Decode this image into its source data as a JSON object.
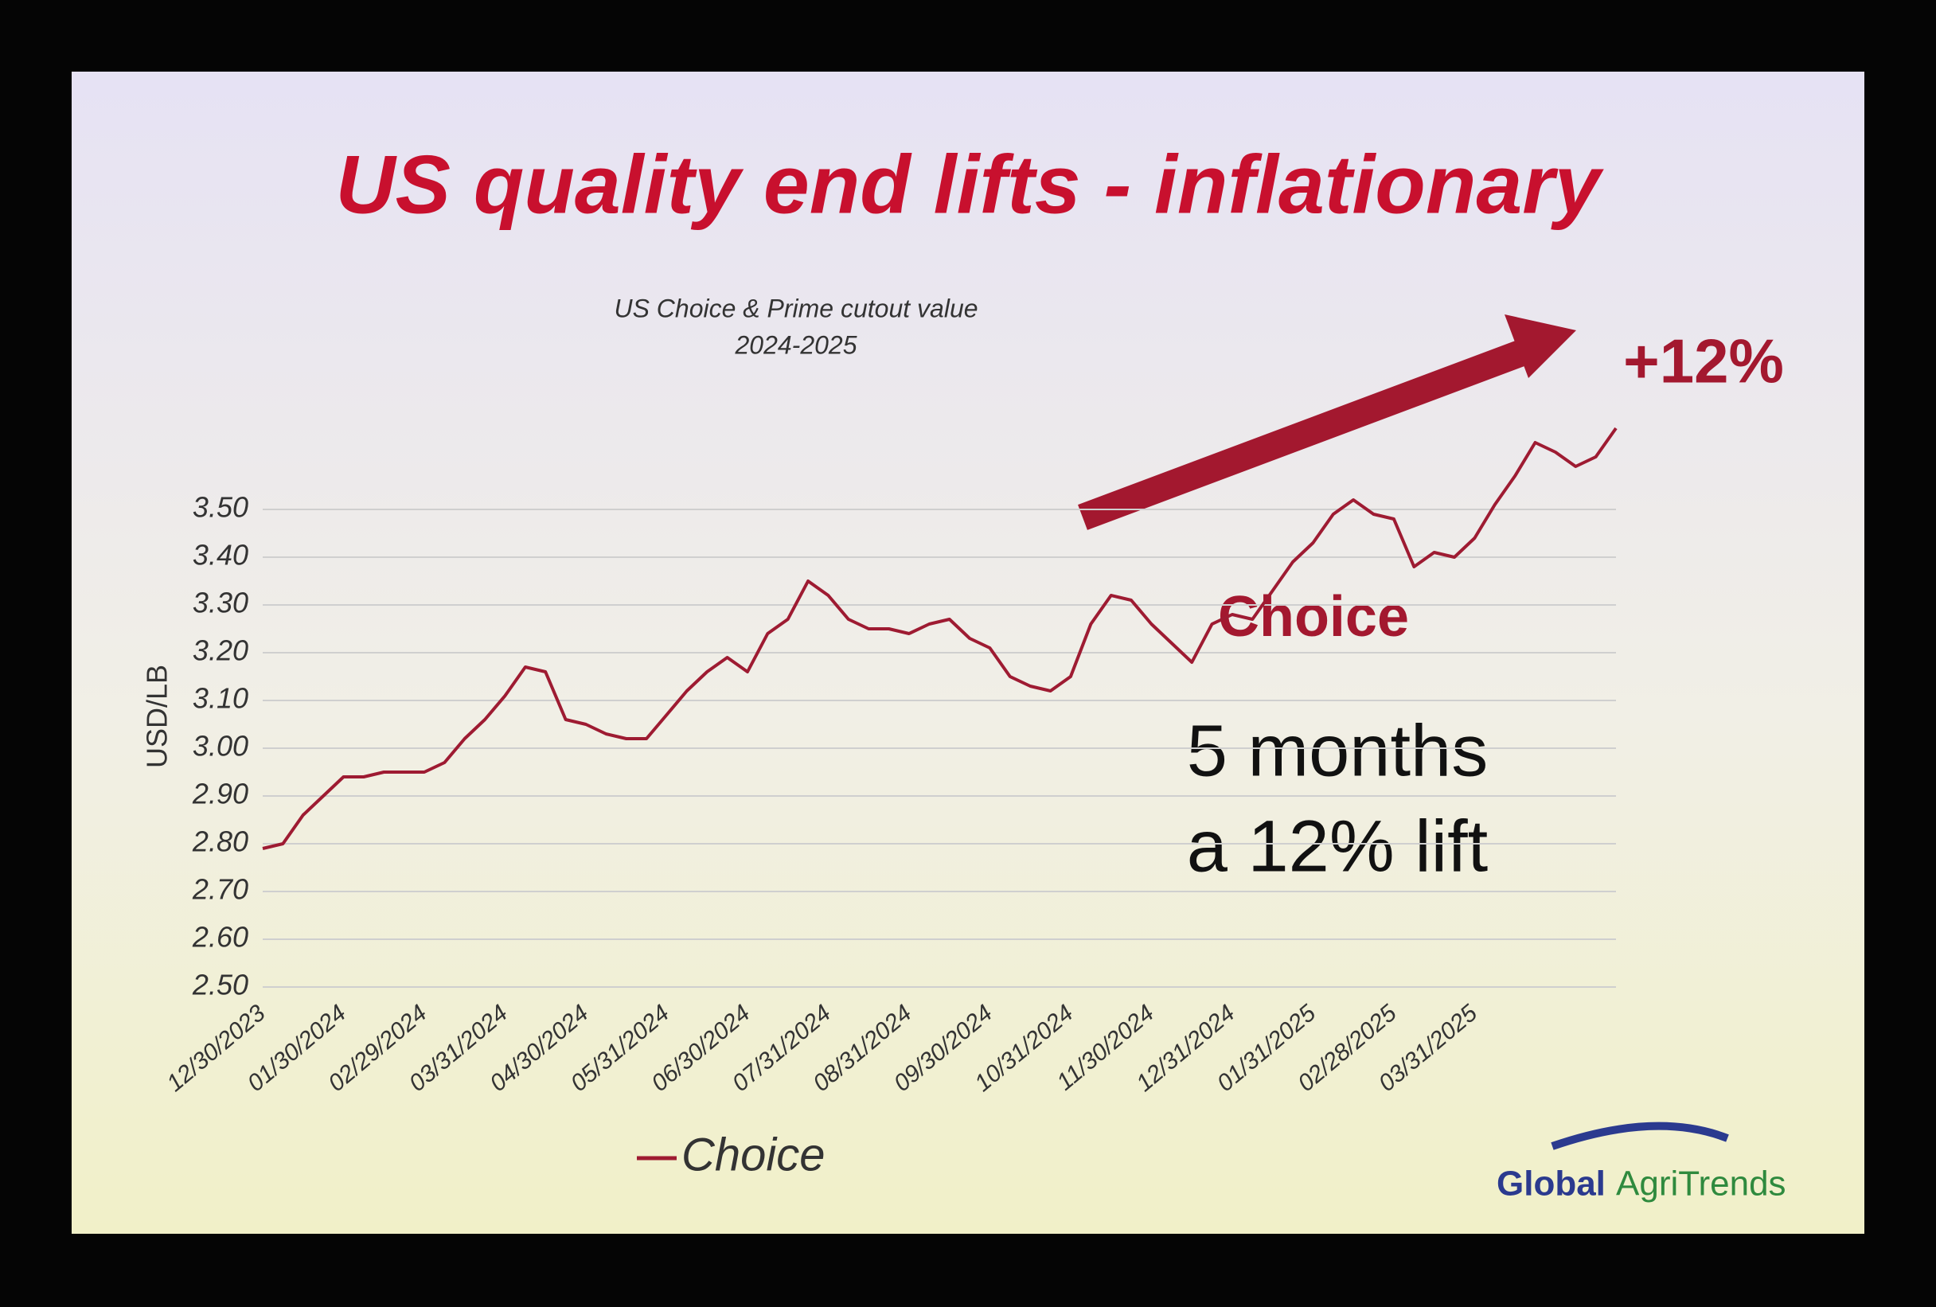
{
  "chart_data": {
    "type": "line",
    "title": "US quality end lifts - inflationary",
    "subtitle": [
      "US Choice & Prime cutout value",
      "2024-2025"
    ],
    "y_label": "USD/LB",
    "categories": [
      "12/30/2023",
      null,
      null,
      null,
      "01/30/2024",
      null,
      null,
      null,
      "02/29/2024",
      null,
      null,
      null,
      "03/31/2024",
      null,
      null,
      null,
      "04/30/2024",
      null,
      null,
      null,
      "05/31/2024",
      null,
      null,
      null,
      "06/30/2024",
      null,
      null,
      null,
      "07/31/2024",
      null,
      null,
      null,
      "08/31/2024",
      null,
      null,
      null,
      "09/30/2024",
      null,
      null,
      null,
      "10/31/2024",
      null,
      null,
      null,
      "11/30/2024",
      null,
      null,
      null,
      "12/31/2024",
      null,
      null,
      null,
      "01/31/2025",
      null,
      null,
      null,
      "02/28/2025",
      null,
      null,
      null,
      "03/31/2025",
      null,
      null,
      null,
      null,
      null,
      null,
      null
    ],
    "series": [
      {
        "name": "Choice",
        "color": "#9e1b32",
        "values": [
          2.79,
          2.8,
          2.86,
          2.9,
          2.94,
          2.94,
          2.95,
          2.95,
          2.95,
          2.97,
          3.02,
          3.06,
          3.11,
          3.17,
          3.16,
          3.06,
          3.05,
          3.03,
          3.02,
          3.02,
          3.07,
          3.12,
          3.16,
          3.19,
          3.16,
          3.24,
          3.27,
          3.35,
          3.32,
          3.27,
          3.25,
          3.25,
          3.24,
          3.26,
          3.27,
          3.23,
          3.21,
          3.15,
          3.13,
          3.12,
          3.15,
          3.26,
          3.32,
          3.31,
          3.26,
          3.22,
          3.18,
          3.26,
          3.28,
          3.27,
          3.33,
          3.39,
          3.43,
          3.49,
          3.52,
          3.49,
          3.48,
          3.38,
          3.41,
          3.4,
          3.44,
          3.51,
          3.57,
          3.64,
          3.62,
          3.59,
          3.61,
          3.67
        ]
      }
    ],
    "ylim": [
      2.5,
      3.7
    ],
    "yticks": [
      {
        "value": 2.5,
        "label": "2.50"
      },
      {
        "value": 2.6,
        "label": "2.60"
      },
      {
        "value": 2.7,
        "label": "2.70"
      },
      {
        "value": 2.8,
        "label": "2.80"
      },
      {
        "value": 2.9,
        "label": "2.90"
      },
      {
        "value": 3.0,
        "label": "3.00"
      },
      {
        "value": 3.1,
        "label": "3.10"
      },
      {
        "value": 3.2,
        "label": "3.20"
      },
      {
        "value": 3.3,
        "label": "3.30"
      },
      {
        "value": 3.4,
        "label": "3.40"
      },
      {
        "value": 3.5,
        "label": "3.50"
      }
    ],
    "grid": true,
    "annotations": [
      "+12%",
      "Choice",
      "5 months",
      "a 12% lift"
    ],
    "logo": [
      "Global",
      "AgriTrends"
    ]
  }
}
